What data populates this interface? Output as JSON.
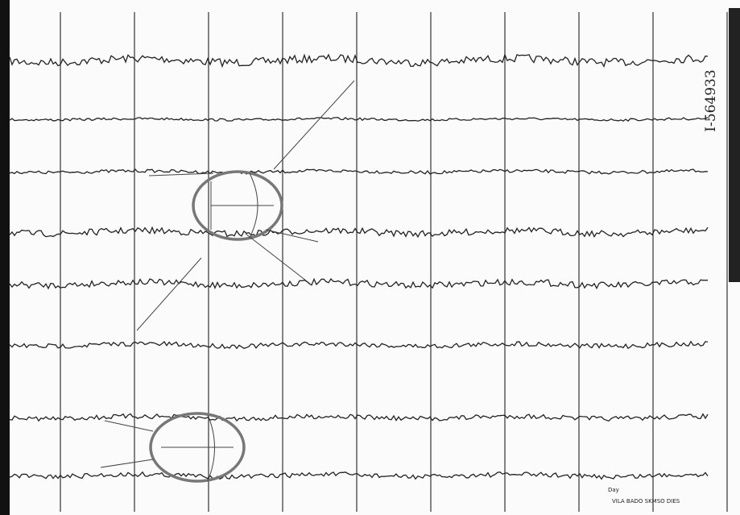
{
  "record_id": "I-564933",
  "footer": {
    "day": "Day",
    "caption": "VILA BADO SKMSO DIES"
  }
}
